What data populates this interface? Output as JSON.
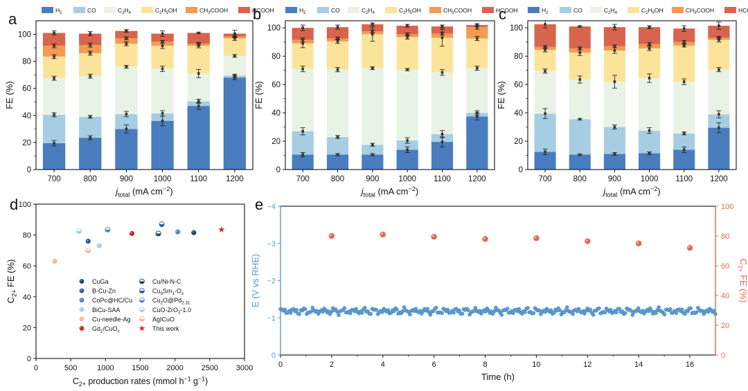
{
  "colors": {
    "H2": "#4a7dbf",
    "CO": "#a7cde3",
    "C2H4": "#e8f3e6",
    "C2H5OH": "#fbe49a",
    "CH3COOH": "#f39a55",
    "HCOOH": "#d9644d",
    "potential": "#5b9bd0",
    "fe_axis": "#e06a50"
  },
  "chart_data": [
    {
      "panel": "a",
      "type": "bar",
      "stacked": true,
      "xlabel": "j_total (mA cm^-2)",
      "ylabel": "FE (%)",
      "ylim": [
        0,
        110
      ],
      "yticks": [
        0,
        20,
        40,
        60,
        80,
        100
      ],
      "categories": [
        "700",
        "800",
        "900",
        "1000",
        "1100",
        "1200"
      ],
      "legend": [
        "H2",
        "CO",
        "C2H4",
        "C2H5OH",
        "CH3COOH",
        "HCOOH"
      ],
      "series": [
        {
          "name": "H2",
          "values": [
            19.5,
            23.5,
            30,
            36,
            47,
            68
          ],
          "errors": [
            2,
            1.5,
            3,
            3.5,
            2.5,
            1.5
          ]
        },
        {
          "name": "CO",
          "values": [
            21,
            15.5,
            11,
            5.5,
            3.5,
            1.5
          ],
          "errors": [
            1.5,
            1,
            2,
            2,
            1.5,
            1
          ]
        },
        {
          "name": "C2H4",
          "values": [
            27,
            30,
            35,
            33,
            20.5,
            14.5
          ],
          "errors": [
            1.5,
            1.5,
            1,
            2,
            3,
            1
          ]
        },
        {
          "name": "C2H5OH",
          "values": [
            16,
            17,
            17,
            17,
            20.5,
            13
          ],
          "errors": [
            1.5,
            1.5,
            1.5,
            2,
            1.5,
            1.5
          ]
        },
        {
          "name": "CH3COOH",
          "values": [
            8,
            6,
            4,
            3,
            1.5,
            1.5
          ],
          "errors": [
            1.5,
            1.5,
            1,
            1,
            1,
            1
          ]
        },
        {
          "name": "HCOOH",
          "values": [
            9.5,
            8.5,
            5.5,
            6,
            8,
            2
          ],
          "errors": [
            1.5,
            1.5,
            1,
            2,
            0.5,
            2.5
          ]
        }
      ]
    },
    {
      "panel": "b",
      "type": "bar",
      "stacked": true,
      "xlabel": "j_total (mA cm^-2)",
      "ylabel": "FE (%)",
      "ylim": [
        0,
        105
      ],
      "yticks": [
        0,
        20,
        40,
        60,
        80,
        100
      ],
      "categories": [
        "700",
        "800",
        "900",
        "1000",
        "1100",
        "1200"
      ],
      "legend": [
        "H2",
        "CO",
        "C2H4",
        "C2H5OH",
        "CH3COOH",
        "HCOOH"
      ],
      "series": [
        {
          "name": "H2",
          "values": [
            10.5,
            10.5,
            10.5,
            14,
            19.5,
            37.5
          ],
          "errors": [
            1.5,
            0.8,
            0.8,
            2,
            3.5,
            2.5
          ]
        },
        {
          "name": "CO",
          "values": [
            16.5,
            12.5,
            7,
            6.5,
            5.5,
            2.5
          ],
          "errors": [
            2.5,
            1,
            1,
            2,
            2.5,
            1.5
          ]
        },
        {
          "name": "C2H4",
          "values": [
            44,
            47.5,
            54,
            50,
            43.5,
            31.5
          ],
          "errors": [
            2,
            1.5,
            1,
            0.8,
            2,
            1.5
          ]
        },
        {
          "name": "C2H5OH",
          "values": [
            18,
            20,
            24,
            23,
            24.5,
            21
          ],
          "errors": [
            3,
            1.5,
            5,
            1.5,
            6,
            1.5
          ]
        },
        {
          "name": "CH3COOH",
          "values": [
            2.5,
            2,
            2,
            2,
            3,
            8
          ],
          "errors": [
            1.5,
            1,
            1,
            1,
            1,
            1.5
          ]
        },
        {
          "name": "HCOOH",
          "values": [
            8.5,
            8,
            5,
            6,
            5,
            1.5
          ],
          "errors": [
            2,
            1.5,
            1,
            1,
            1,
            1
          ]
        }
      ]
    },
    {
      "panel": "c",
      "type": "bar",
      "stacked": true,
      "xlabel": "j_total (mA cm^-2)",
      "ylabel": "FE (%)",
      "ylim": [
        0,
        105
      ],
      "yticks": [
        0,
        20,
        40,
        60,
        80,
        100
      ],
      "categories": [
        "700",
        "800",
        "900",
        "1000",
        "1100",
        "1200"
      ],
      "legend": [
        "H2",
        "CO",
        "C2H4",
        "C2H5OH",
        "CH3COOH",
        "HCOOH"
      ],
      "series": [
        {
          "name": "H2",
          "values": [
            12.5,
            10.5,
            11,
            11.5,
            14,
            29.5
          ],
          "errors": [
            2,
            0.5,
            1,
            1,
            2,
            3.5
          ]
        },
        {
          "name": "CO",
          "values": [
            27,
            25,
            19,
            16,
            11.5,
            9.5
          ],
          "errors": [
            3.5,
            0.5,
            1.5,
            2,
            1,
            2.5
          ]
        },
        {
          "name": "C2H4",
          "values": [
            30,
            28,
            32,
            37,
            36.5,
            31.5
          ],
          "errors": [
            1.5,
            2.5,
            4.5,
            3,
            2,
            1.5
          ]
        },
        {
          "name": "C2H5OH",
          "values": [
            15,
            19,
            22,
            21,
            25.5,
            21
          ],
          "errors": [
            1.5,
            2,
            2,
            1.5,
            1,
            1.5
          ]
        },
        {
          "name": "CH3COOH",
          "values": [
            2,
            3,
            3,
            3,
            2.5,
            1.5
          ],
          "errors": [
            1,
            1,
            1,
            1,
            1,
            1
          ]
        },
        {
          "name": "HCOOH",
          "values": [
            16,
            15.5,
            13.5,
            12,
            9.5,
            8.5
          ],
          "errors": [
            2.5,
            0.5,
            2,
            1,
            2,
            2.5
          ]
        }
      ]
    },
    {
      "panel": "d",
      "type": "scatter",
      "xlabel": "C2+ production rates (mmol h^-1 g^-1)",
      "ylabel": "C2+ FE (%)",
      "xlim": [
        0,
        3000
      ],
      "ylim": [
        0,
        100
      ],
      "xticks": [
        0,
        500,
        1000,
        1500,
        2000,
        2500,
        3000
      ],
      "yticks": [
        0,
        20,
        40,
        60,
        80,
        100
      ],
      "points": [
        {
          "label": "CuGa",
          "x": 2270,
          "y": 81.5,
          "color": "#1f3f78",
          "marker": "circle"
        },
        {
          "label": "Cu/Ni-N-C",
          "x": 1760,
          "y": 81,
          "color": "#1f3f78",
          "marker": "half"
        },
        {
          "label": "B-Cu-Zn",
          "x": 750,
          "y": 76,
          "color": "#2f5a9f",
          "marker": "circle"
        },
        {
          "label": "Cu9Sm1-Ox",
          "x": 1810,
          "y": 87,
          "color": "#2f5a9f",
          "marker": "half"
        },
        {
          "label": "CoPc@HC/Cu",
          "x": 2040,
          "y": 82,
          "color": "#4e86c6",
          "marker": "circle"
        },
        {
          "label": "Cu2O@Pd2.31",
          "x": 1030,
          "y": 83.5,
          "color": "#4e86c6",
          "marker": "half"
        },
        {
          "label": "BiCu-SAA",
          "x": 910,
          "y": 73,
          "color": "#a9cfe6",
          "marker": "circle"
        },
        {
          "label": "CuO-ZrO2-1.0",
          "x": 620,
          "y": 82.5,
          "color": "#a9cfe6",
          "marker": "half"
        },
        {
          "label": "Cu-needle-Ag",
          "x": 270,
          "y": 63,
          "color": "#f6b792",
          "marker": "circle"
        },
        {
          "label": "AgICuO",
          "x": 750,
          "y": 70,
          "color": "#f6b792",
          "marker": "half"
        },
        {
          "label": "Gd1/CuOx",
          "x": 1380,
          "y": 81,
          "color": "#c9281e",
          "marker": "circle"
        },
        {
          "label": "This work",
          "x": 2670,
          "y": 83.5,
          "color": "#d62b22",
          "marker": "star"
        }
      ]
    },
    {
      "panel": "e",
      "type": "scatter",
      "xlabel": "Time (h)",
      "ylabel_left": "E (V vs RHE)",
      "ylabel_right": "C2+ FE (%)",
      "xlim": [
        0,
        17
      ],
      "xticks": [
        0,
        2,
        4,
        6,
        8,
        10,
        12,
        14,
        16
      ],
      "ylim_left": [
        0,
        -4
      ],
      "yticks_left": [
        "0",
        "-1",
        "-2",
        "-3",
        "-4"
      ],
      "ylim_right": [
        0,
        100
      ],
      "yticks_right": [
        0,
        20,
        40,
        60,
        80,
        100
      ],
      "potential_mean": -1.18,
      "potential_samples": 300,
      "fe_points": [
        {
          "x": 2,
          "y": 80
        },
        {
          "x": 4,
          "y": 81
        },
        {
          "x": 6,
          "y": 79.5
        },
        {
          "x": 8,
          "y": 78
        },
        {
          "x": 10,
          "y": 78.5
        },
        {
          "x": 12,
          "y": 76.5
        },
        {
          "x": 14,
          "y": 75
        },
        {
          "x": 16,
          "y": 72
        }
      ]
    }
  ]
}
